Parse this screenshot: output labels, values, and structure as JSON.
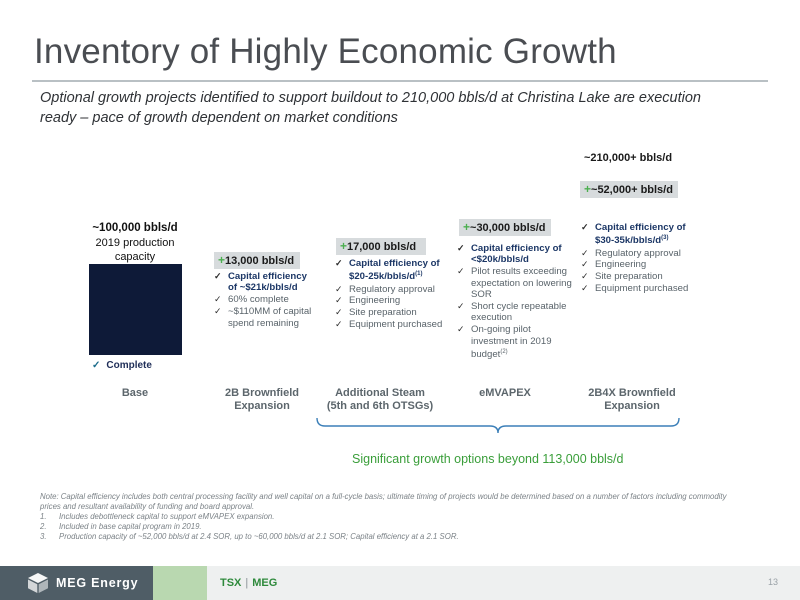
{
  "title": "Inventory of Highly Economic Growth",
  "subtitle": "Optional growth projects identified to support buildout to 210,000 bbls/d at Christina Lake are execution ready – pace of growth dependent on market conditions",
  "chart_data": {
    "type": "bar",
    "categories": [
      "Base",
      "2B Brownfield Expansion",
      "Additional Steam (5th and 6th OTSGs)",
      "eMVAPEX",
      "2B4X Brownfield Expansion"
    ],
    "values_bbls_per_day": [
      100000,
      13000,
      17000,
      30000,
      52000
    ],
    "cumulative_total_label": "~210,000+ bbls/d",
    "colors": {
      "base_bar": "#0e1a38",
      "increment_badge": "#d7dbdd",
      "plus_sign": "#4caf50",
      "highlight_text": "#1c3766",
      "bracket": "#3b7fb8",
      "bracket_text": "#3a9e3a"
    }
  },
  "base": {
    "value_label": "~100,000 bbls/d",
    "sub_label": "2019 production capacity",
    "check": "Complete",
    "category": "Base"
  },
  "projects": [
    {
      "plus": "+",
      "value_label": "13,000 bbls/d",
      "category_line1": "2B Brownfield",
      "category_line2": "Expansion",
      "checks": [
        {
          "text": "Capital efficiency of ~$21k/bbls/d",
          "sup": ""
        },
        {
          "text": "60% complete",
          "sup": ""
        },
        {
          "text": "~$110MM of capital spend remaining",
          "sup": ""
        }
      ]
    },
    {
      "plus": "+",
      "value_label": "17,000 bbls/d",
      "category_line1": "Additional Steam",
      "category_line2": "(5th and 6th OTSGs)",
      "checks": [
        {
          "text": "Capital efficiency of $20-25k/bbls/d",
          "sup": "(1)"
        },
        {
          "text": "Regulatory approval",
          "sup": ""
        },
        {
          "text": "Engineering",
          "sup": ""
        },
        {
          "text": "Site preparation",
          "sup": ""
        },
        {
          "text": "Equipment purchased",
          "sup": ""
        }
      ]
    },
    {
      "plus": "+",
      "value_label": "~30,000 bbls/d",
      "category_line1": "eMVAPEX",
      "category_line2": "",
      "checks": [
        {
          "text": "Capital efficiency of <$20k/bbls/d",
          "sup": ""
        },
        {
          "text": "Pilot results exceeding expectation on lowering SOR",
          "sup": ""
        },
        {
          "text": "Short cycle repeatable execution",
          "sup": ""
        },
        {
          "text": "On-going pilot investment in 2019 budget",
          "sup": "(2)"
        }
      ]
    },
    {
      "plus": "+",
      "value_label": "~52,000+ bbls/d",
      "total_label": "~210,000+ bbls/d",
      "category_line1": "2B4X Brownfield",
      "category_line2": "Expansion",
      "checks": [
        {
          "text": "Capital efficiency of $30-35k/bbls/d",
          "sup": "(3)"
        },
        {
          "text": "Regulatory approval",
          "sup": ""
        },
        {
          "text": "Engineering",
          "sup": ""
        },
        {
          "text": "Site preparation",
          "sup": ""
        },
        {
          "text": "Equipment purchased",
          "sup": ""
        }
      ]
    }
  ],
  "bracket_text": "Significant growth options beyond 113,000 bbls/d",
  "notes": {
    "main": "Note: Capital efficiency includes both central processing facility and well capital on a full-cycle basis; ultimate timing of projects would be determined based on a number of factors including commodity prices and resultant availability of funding and board approval.",
    "items": [
      {
        "num": "1.",
        "text": "Includes debottleneck capital to support eMVAPEX expansion."
      },
      {
        "num": "2.",
        "text": "Included in base capital program in 2019."
      },
      {
        "num": "3.",
        "text": "Production capacity of ~52,000 bbls/d at 2.4 SOR, up to ~60,000 bbls/d at 2.1 SOR; Capital efficiency at a 2.1 SOR."
      }
    ]
  },
  "footer": {
    "company": "MEG Energy",
    "exchange": "TSX",
    "ticker": "MEG",
    "page_number": "13",
    "logo_icon": "meg-cube-logo"
  }
}
